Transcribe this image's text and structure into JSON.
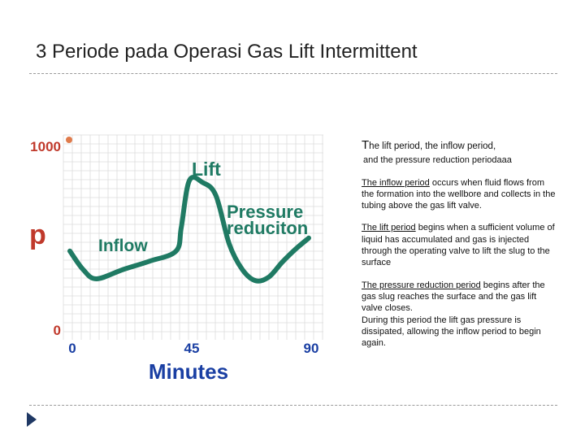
{
  "slide": {
    "title": "3 Periode pada Operasi Gas Lift Intermittent"
  },
  "description": {
    "intro_first_letter": "T",
    "intro_rest": "he lift period, the inflow period,",
    "intro_line2": "and the pressure reduction periodaaa",
    "inflow": {
      "term": "The inflow period",
      "rest": " occurs when fluid flows from the formation into the wellbore and collects in the tubing above the gas lift valve."
    },
    "lift": {
      "term": "The lift period",
      "rest": " begins when a sufficient volume of liquid has accumulated and gas is injected through the operating valve to lift the slug to the surface"
    },
    "pressure_reduction": {
      "term": "The pressure reduction period",
      "rest": " begins after the gas slug reaches the surface and the gas lift valve closes.",
      "extra": "During this period the lift gas pressure is dissipated, allowing the inflow period to begin again."
    }
  },
  "chart_data": {
    "type": "line",
    "xlabel": "Minutes",
    "ylabel": "p",
    "xlim": [
      0,
      90
    ],
    "ylim": [
      0,
      1000
    ],
    "x_ticks": [
      "0",
      "45",
      "90"
    ],
    "y_ticks": [
      "0",
      "1000"
    ],
    "grid": true,
    "annotations": {
      "inflow": "Inflow",
      "lift": "Lift",
      "pressure_line1": "Pressure",
      "pressure_line2": "reduciton"
    },
    "series": [
      {
        "color": "#1f7a63",
        "x": [
          0,
          5,
          10,
          20,
          30,
          40,
          42,
          45,
          50,
          55,
          60,
          65,
          70,
          75,
          80,
          85,
          90
        ],
        "y": [
          400,
          300,
          250,
          300,
          345,
          400,
          530,
          780,
          770,
          700,
          440,
          300,
          240,
          260,
          340,
          410,
          470
        ]
      }
    ],
    "colors": {
      "line": "#1f7a63",
      "axis_numbers": "#c0392b",
      "x_numbers": "#1a3fa3",
      "minutes_label": "#1a3fa3",
      "annotation_text": "#1f7a63",
      "marker": "#e07b4b"
    }
  }
}
